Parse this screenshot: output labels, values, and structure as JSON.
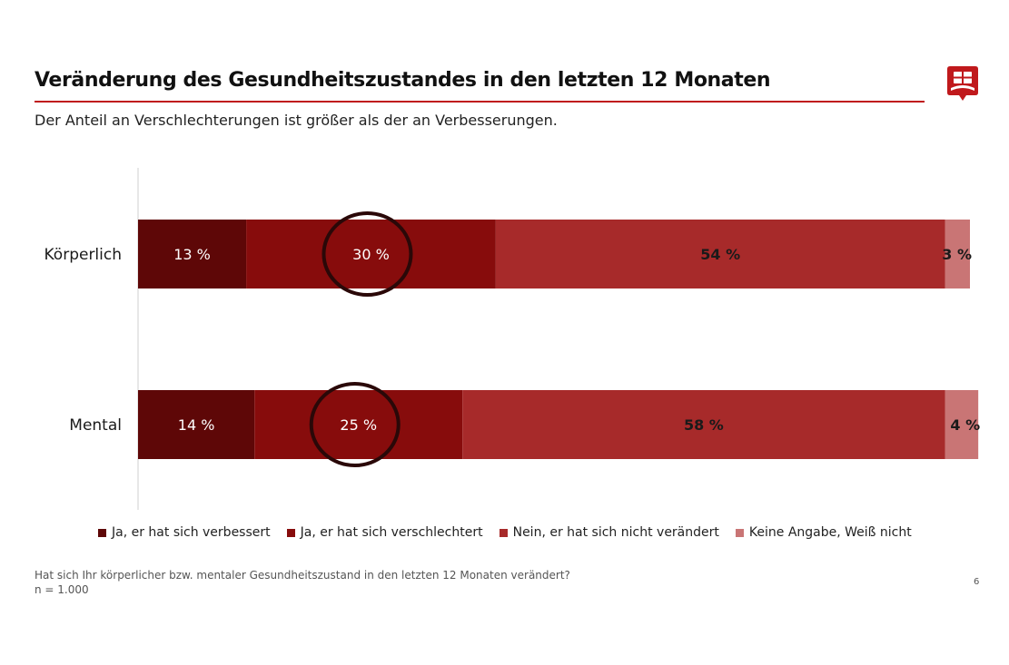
{
  "header": {
    "title": "Veränderung des Gesundheitszustandes in den letzten 12 Monaten",
    "subtitle": "Der Anteil an Verschlechterungen ist größer als der an Verbesserungen.",
    "accent_color": "#c0191c",
    "logo_icon": "shield-logo-icon"
  },
  "chart_data": {
    "type": "bar",
    "orientation": "horizontal",
    "stacked": true,
    "categories": [
      "Körperlich",
      "Mental"
    ],
    "series": [
      {
        "name": "Ja, er hat sich verbessert",
        "values": [
          13,
          14
        ],
        "labels": [
          "13 %",
          "14 %"
        ],
        "color": "#5e0707",
        "label_color": "#ffffff"
      },
      {
        "name": "Ja, er hat sich verschlechtert",
        "values": [
          30,
          25
        ],
        "labels": [
          "30 %",
          "25 %"
        ],
        "color": "#870c0c",
        "label_color": "#ffffff"
      },
      {
        "name": "Nein, er hat sich nicht verändert",
        "values": [
          54,
          58
        ],
        "labels": [
          "54 %",
          "58 %"
        ],
        "color": "#a72a2a",
        "label_color": "#1a1a1a"
      },
      {
        "name": "Keine Angabe, Weiß nicht",
        "values": [
          3,
          4
        ],
        "labels": [
          "3 %",
          "4 %"
        ],
        "color": "#c97575",
        "label_color": "#1a1a1a"
      }
    ],
    "highlighted_series": "Ja, er hat sich verschlechtert",
    "xlim": [
      0,
      100
    ],
    "legend_position": "bottom"
  },
  "footer": {
    "question": "Hat sich Ihr körperlicher bzw. mentaler Gesundheitszustand in den letzten 12 Monaten verändert?",
    "sample": "n = 1.000",
    "page_number": "6"
  }
}
